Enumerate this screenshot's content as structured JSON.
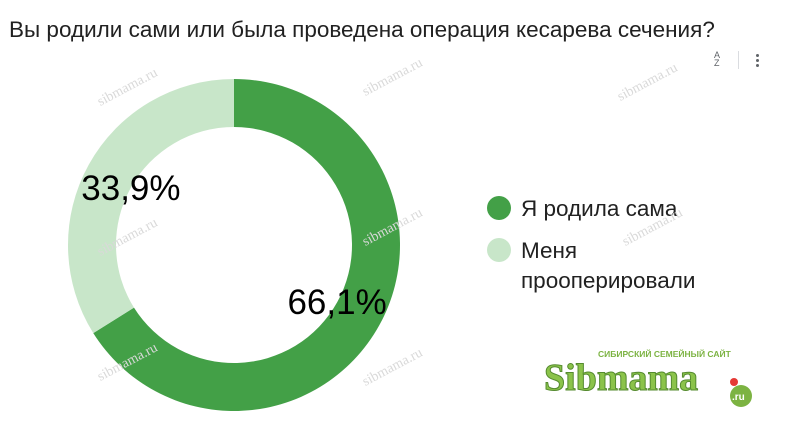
{
  "header": {
    "title": "Вы родили сами или была проведена операция кесарева сечения?"
  },
  "toolbar": {
    "sort_icon": "sort-az-icon",
    "menu_icon": "more-vert-icon",
    "sort_top": "A",
    "sort_bottom": "Z"
  },
  "chart_data": {
    "type": "pie",
    "donut": true,
    "categories": [
      "Я родила сама",
      "Меня прооперировали"
    ],
    "values": [
      66.1,
      33.9
    ],
    "value_labels": [
      "66,1%",
      "33,9%"
    ],
    "colors": [
      "#43a047",
      "#c8e6c9"
    ],
    "title": "Вы родили сами или была проведена операция кесарева сечения?",
    "legend": "right"
  },
  "legend": {
    "items": [
      {
        "label": "Я родила сама",
        "color": "#43a047"
      },
      {
        "label": "Меня прооперировали",
        "color": "#c8e6c9"
      }
    ]
  },
  "watermark": {
    "text": "sibmama.ru"
  },
  "logo": {
    "brand": "Sibmama",
    "tagline": "СИБИРСКИЙ СЕМЕЙНЫЙ САЙТ",
    "domain": ".ru"
  }
}
